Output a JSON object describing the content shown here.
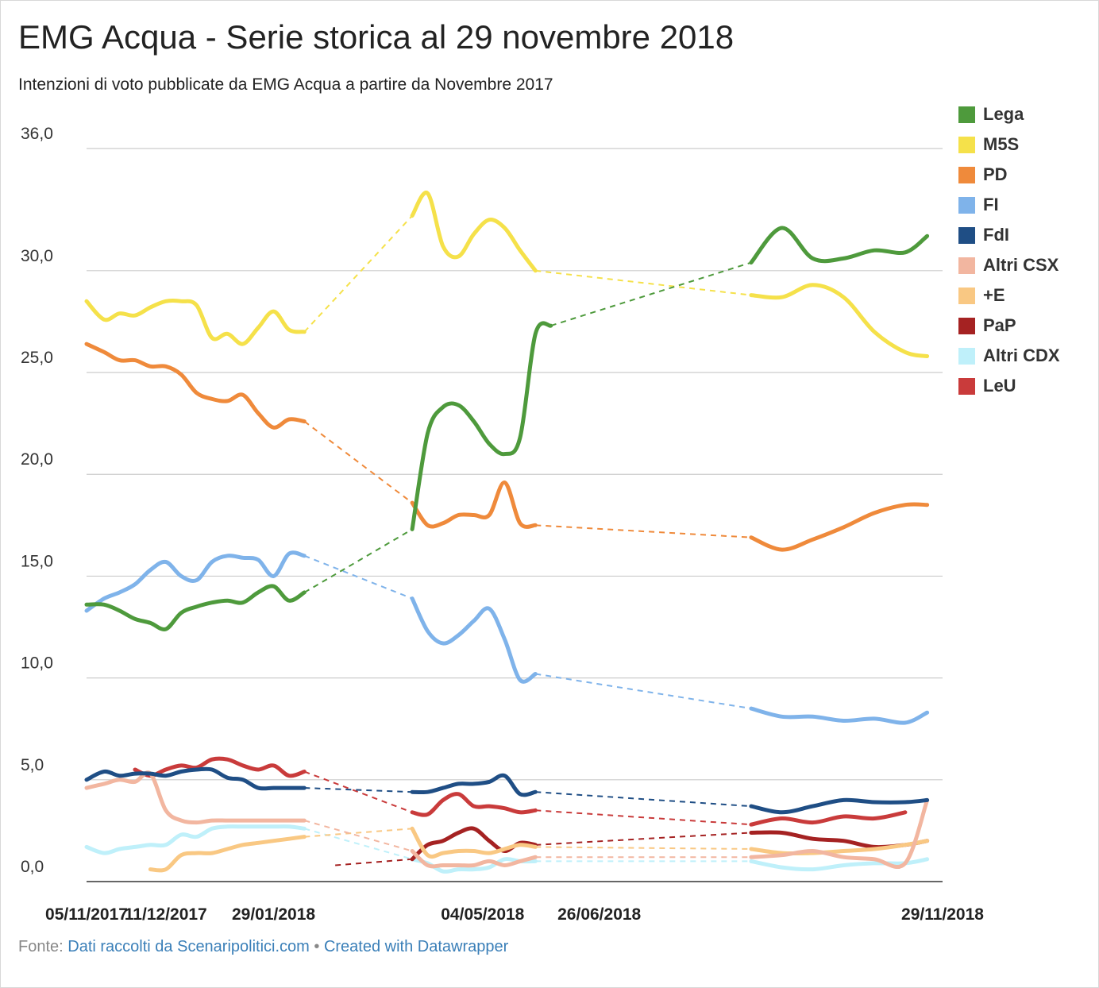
{
  "title": "EMG Acqua - Serie storica al 29 novembre 2018",
  "subtitle": "Intenzioni di voto pubblicate da EMG Acqua a partire da Novembre 2017",
  "source": {
    "prefix": "Fonte: ",
    "link_text": "Dati raccolti da Scenaripolitici.com",
    "separator": " • ",
    "credit": "Created with Datawrapper"
  },
  "chart_data": {
    "type": "line",
    "x_ticks": [
      "05/11/2017",
      "11/12/2017",
      "29/01/2018",
      "04/05/2018",
      "26/06/2018",
      "29/11/2018"
    ],
    "y_ticks": [
      "0,0",
      "5,0",
      "10,0",
      "15,0",
      "20,0",
      "25,0",
      "30,0",
      "36,0"
    ],
    "y_tick_values": [
      0,
      5,
      10,
      15,
      20,
      25,
      30,
      36
    ],
    "ylim": [
      0,
      36
    ],
    "grid": true,
    "legend_position": "right",
    "x": [
      "2017-11-05",
      "2017-11-13",
      "2017-11-20",
      "2017-11-27",
      "2017-12-04",
      "2017-12-11",
      "2017-12-18",
      "2017-12-25",
      "2018-01-01",
      "2018-01-08",
      "2018-01-15",
      "2018-01-22",
      "2018-01-29",
      "2018-02-05",
      "2018-02-12",
      "2018-02-19",
      "2018-02-26",
      "2018-04-02",
      "2018-04-09",
      "2018-04-16",
      "2018-04-23",
      "2018-04-30",
      "2018-05-07",
      "2018-05-14",
      "2018-05-21",
      "2018-05-28",
      "2018-06-04",
      "2018-06-11",
      "2018-06-18",
      "2018-06-25",
      "2018-09-03",
      "2018-09-17",
      "2018-10-01",
      "2018-10-15",
      "2018-10-29",
      "2018-11-12",
      "2018-11-22",
      "2018-11-29"
    ],
    "series": [
      {
        "name": "Lega",
        "color": "#4e9a3c",
        "values": [
          13.6,
          13.6,
          13.3,
          12.9,
          12.7,
          12.4,
          13.2,
          13.5,
          13.7,
          13.8,
          13.7,
          14.2,
          14.5,
          13.8,
          14.2,
          null,
          null,
          17.3,
          22.0,
          23.3,
          23.4,
          22.6,
          21.5,
          21.0,
          21.8,
          26.9,
          27.3,
          null,
          null,
          null,
          30.4,
          32.1,
          30.6,
          30.6,
          31.0,
          30.9,
          31.7,
          null
        ]
      },
      {
        "name": "M5S",
        "color": "#f5e14a",
        "values": [
          28.5,
          27.6,
          27.9,
          27.8,
          28.2,
          28.5,
          28.5,
          28.3,
          26.7,
          26.9,
          26.4,
          27.2,
          28.0,
          27.1,
          27.0,
          null,
          null,
          32.7,
          33.8,
          31.2,
          30.7,
          31.8,
          32.5,
          32.1,
          31.0,
          30.0,
          null,
          null,
          null,
          null,
          28.8,
          28.7,
          29.3,
          28.7,
          27.0,
          26.0,
          25.8,
          null
        ]
      },
      {
        "name": "PD",
        "color": "#ef8a3b",
        "values": [
          26.4,
          26.0,
          25.6,
          25.6,
          25.3,
          25.3,
          24.9,
          24.0,
          23.7,
          23.6,
          23.9,
          23.0,
          22.3,
          22.7,
          22.6,
          null,
          null,
          18.6,
          17.5,
          17.6,
          18.0,
          18.0,
          18.0,
          19.6,
          17.6,
          17.5,
          null,
          null,
          null,
          null,
          16.9,
          16.3,
          16.8,
          17.4,
          18.1,
          18.5,
          18.5,
          null
        ]
      },
      {
        "name": "FI",
        "color": "#7fb3ea",
        "values": [
          13.3,
          13.9,
          14.2,
          14.6,
          15.3,
          15.7,
          15.0,
          14.8,
          15.7,
          16.0,
          15.9,
          15.8,
          15.0,
          16.1,
          16.0,
          null,
          null,
          13.9,
          12.3,
          11.7,
          12.1,
          12.8,
          13.4,
          11.9,
          9.9,
          10.2,
          null,
          null,
          null,
          null,
          8.5,
          8.1,
          8.1,
          7.9,
          8.0,
          7.8,
          8.3,
          null
        ]
      },
      {
        "name": "FdI",
        "color": "#1f4e85",
        "values": [
          5.0,
          5.4,
          5.2,
          5.3,
          5.3,
          5.2,
          5.4,
          5.5,
          5.5,
          5.1,
          5.0,
          4.6,
          4.6,
          4.6,
          4.6,
          null,
          null,
          4.4,
          4.4,
          4.6,
          4.8,
          4.8,
          4.9,
          5.2,
          4.3,
          4.4,
          null,
          null,
          null,
          null,
          3.7,
          3.4,
          3.7,
          4.0,
          3.9,
          3.9,
          4.0,
          null
        ]
      },
      {
        "name": "Altri CSX",
        "color": "#f2b6a0",
        "values": [
          4.6,
          4.8,
          5.0,
          4.9,
          5.3,
          3.5,
          3.0,
          2.9,
          3.0,
          3.0,
          3.0,
          3.0,
          3.0,
          3.0,
          3.0,
          null,
          null,
          1.5,
          0.8,
          0.8,
          0.8,
          0.8,
          1.0,
          0.8,
          1.0,
          1.2,
          null,
          null,
          null,
          null,
          1.2,
          1.3,
          1.5,
          1.2,
          1.1,
          0.9,
          4.0,
          null
        ]
      },
      {
        "name": "+E",
        "color": "#f9c883",
        "values": [
          null,
          null,
          null,
          null,
          0.6,
          0.6,
          1.3,
          1.4,
          1.4,
          1.6,
          1.8,
          1.9,
          2.0,
          2.1,
          2.2,
          null,
          null,
          2.6,
          1.3,
          1.4,
          1.5,
          1.5,
          1.4,
          1.6,
          1.8,
          1.7,
          null,
          null,
          null,
          null,
          1.6,
          1.4,
          1.4,
          1.5,
          1.6,
          1.8,
          2.0,
          null
        ]
      },
      {
        "name": "PaP",
        "color": "#a52222",
        "values": [
          null,
          null,
          null,
          null,
          null,
          null,
          null,
          null,
          null,
          null,
          null,
          null,
          null,
          null,
          null,
          null,
          null,
          1.1,
          1.8,
          2.0,
          2.4,
          2.6,
          2.0,
          1.5,
          1.9,
          1.8,
          null,
          null,
          null,
          null,
          2.4,
          2.4,
          2.1,
          2.0,
          1.7,
          1.8,
          2.0,
          null
        ]
      },
      {
        "name": "Altri CDX",
        "color": "#bff0fa",
        "values": [
          1.7,
          1.4,
          1.6,
          1.7,
          1.8,
          1.8,
          2.3,
          2.2,
          2.6,
          2.7,
          2.7,
          2.7,
          2.7,
          2.7,
          2.6,
          null,
          null,
          1.1,
          0.9,
          0.5,
          0.6,
          0.6,
          0.7,
          1.1,
          1.0,
          1.0,
          null,
          null,
          null,
          null,
          1.0,
          0.7,
          0.6,
          0.8,
          0.9,
          0.9,
          1.1,
          null
        ]
      },
      {
        "name": "LeU",
        "color": "#c93b3b",
        "values": [
          null,
          null,
          null,
          5.5,
          5.2,
          5.5,
          5.7,
          5.6,
          6.0,
          6.0,
          5.7,
          5.5,
          5.7,
          5.2,
          5.4,
          null,
          null,
          3.4,
          3.3,
          4.0,
          4.3,
          3.7,
          3.7,
          3.6,
          3.4,
          3.5,
          null,
          null,
          null,
          null,
          2.8,
          3.1,
          2.9,
          3.2,
          3.1,
          3.4,
          null,
          null
        ]
      }
    ]
  }
}
